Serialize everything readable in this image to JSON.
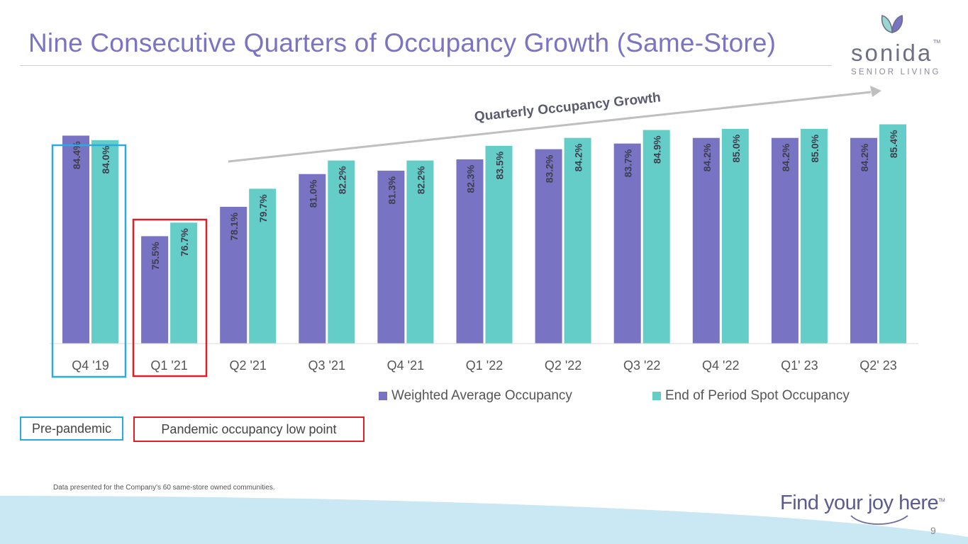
{
  "slide": {
    "title": "Nine Consecutive Quarters of Occupancy Growth (Same-Store)",
    "growth_label": "Quarterly Occupancy Growth",
    "pre_pandemic_label": "Pre-pandemic",
    "pandemic_label": "Pandemic occupancy low point",
    "footnote": "Data presented for the Company's 60 same-store owned communities.",
    "tagline": "Find your joy here",
    "tagline_tm": "TM",
    "page_number": "9"
  },
  "logo": {
    "name": "sonida",
    "tm": "TM",
    "subtitle": "SENIOR LIVING"
  },
  "colors": {
    "title": "#7a74c2",
    "weighted": "#7873c2",
    "spot": "#64cdc8",
    "pre_box": "#29abe2",
    "pandemic_box": "#e01e26",
    "arrow": "#bfbfbf"
  },
  "chart_data": {
    "type": "bar",
    "title": "",
    "xlabel": "",
    "ylabel": "",
    "categories": [
      "Q4 '19",
      "Q1 '21",
      "Q2 '21",
      "Q3 '21",
      "Q4 '21",
      "Q1 '22",
      "Q2 '22",
      "Q3 '22",
      "Q4 '22",
      "Q1' 23",
      "Q2' 23"
    ],
    "series": [
      {
        "name": "Weighted Average Occupancy",
        "values": [
          84.4,
          75.5,
          78.1,
          81.0,
          81.3,
          82.3,
          83.2,
          83.7,
          84.2,
          84.2,
          84.2
        ],
        "labels": [
          "84.4%",
          "75.5%",
          "78.1%",
          "81.0%",
          "81.3%",
          "82.3%",
          "83.2%",
          "83.7%",
          "84.2%",
          "84.2%",
          "84.2%"
        ]
      },
      {
        "name": "End of Period Spot Occupancy",
        "values": [
          84.0,
          76.7,
          79.7,
          82.2,
          82.2,
          83.5,
          84.2,
          84.9,
          85.0,
          85.0,
          85.4
        ],
        "labels": [
          "84.0%",
          "76.7%",
          "79.7%",
          "82.2%",
          "82.2%",
          "83.5%",
          "84.2%",
          "84.9%",
          "85.0%",
          "85.0%",
          "85.4%"
        ]
      }
    ],
    "ylim": [
      66,
      87
    ],
    "grid": false,
    "legend": "bottom",
    "highlights": [
      {
        "category": "Q4 '19",
        "label": "Pre-pandemic"
      },
      {
        "category": "Q1 '21",
        "label": "Pandemic occupancy low point"
      }
    ]
  }
}
